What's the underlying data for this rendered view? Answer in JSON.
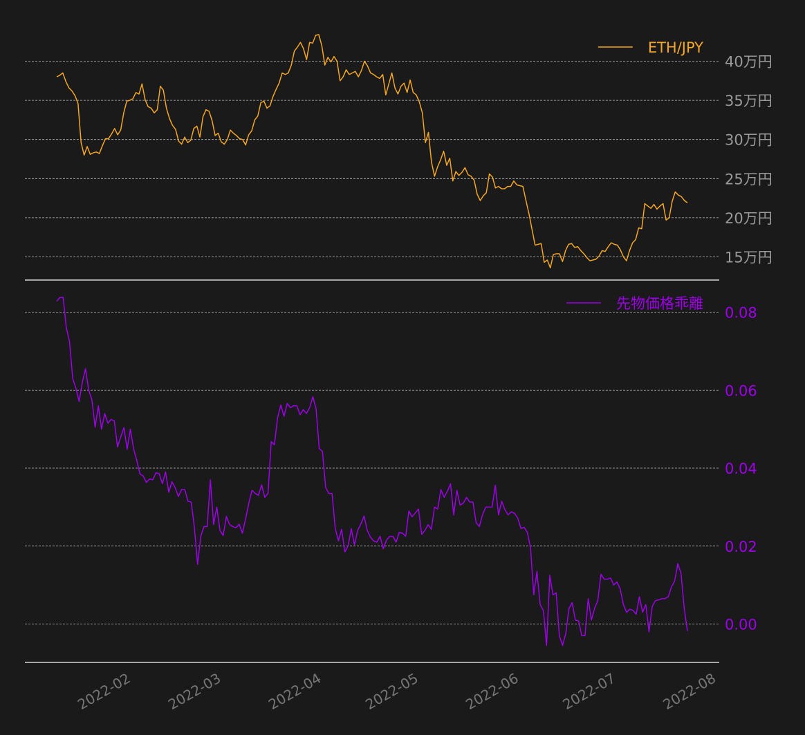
{
  "chart_data": [
    {
      "type": "line",
      "series": [
        {
          "name": "ETH/JPY",
          "color": "#f5a623",
          "values": [
            380000,
            382000,
            385000,
            374000,
            366000,
            362000,
            356000,
            346000,
            296000,
            280000,
            291000,
            281000,
            283000,
            284000,
            282000,
            292000,
            301000,
            301000,
            307000,
            314000,
            306000,
            312000,
            334000,
            349000,
            350000,
            352000,
            360000,
            358000,
            371000,
            351000,
            342000,
            340000,
            334000,
            338000,
            368000,
            363000,
            340000,
            327000,
            318000,
            313000,
            298000,
            294000,
            303000,
            296000,
            299000,
            314000,
            317000,
            303000,
            329000,
            338000,
            336000,
            324000,
            305000,
            308000,
            297000,
            294000,
            300000,
            312000,
            308000,
            305000,
            301000,
            300000,
            293000,
            306000,
            311000,
            325000,
            330000,
            347000,
            349000,
            340000,
            343000,
            355000,
            364000,
            372000,
            385000,
            383000,
            385000,
            395000,
            413000,
            418000,
            424000,
            416000,
            402000,
            424000,
            423000,
            433000,
            434000,
            420000,
            395000,
            405000,
            399000,
            406000,
            400000,
            375000,
            380000,
            389000,
            383000,
            385000,
            387000,
            380000,
            388000,
            400000,
            394000,
            385000,
            383000,
            380000,
            378000,
            383000,
            357000,
            371000,
            385000,
            366000,
            358000,
            368000,
            372000,
            360000,
            376000,
            360000,
            357000,
            348000,
            334000,
            296000,
            309000,
            271000,
            253000,
            265000,
            274000,
            285000,
            267000,
            276000,
            247000,
            259000,
            254000,
            258000,
            264000,
            255000,
            253000,
            248000,
            230000,
            222000,
            228000,
            232000,
            256000,
            252000,
            238000,
            240000,
            237000,
            237000,
            240000,
            240000,
            247000,
            242000,
            241000,
            240000,
            222000,
            205000,
            185000,
            165000,
            166000,
            167000,
            143000,
            146000,
            136000,
            153000,
            154000,
            154000,
            144000,
            158000,
            166000,
            167000,
            162000,
            163000,
            158000,
            154000,
            149000,
            145000,
            146000,
            147000,
            151000,
            158000,
            157000,
            163000,
            168000,
            166000,
            165000,
            159000,
            150000,
            145000,
            158000,
            168000,
            172000,
            187000,
            186000,
            218000,
            215000,
            212000,
            217000,
            211000,
            215000,
            218000,
            197000,
            200000,
            221000,
            233000,
            229000,
            227000,
            222000,
            219000
          ]
        }
      ],
      "ylim": [
        120000,
        450000
      ],
      "yticks": [
        150000,
        200000,
        250000,
        300000,
        350000,
        400000
      ],
      "ytick_labels": [
        "15万円",
        "20万円",
        "25万円",
        "30万円",
        "35万円",
        "40万円"
      ],
      "legend": "top-right",
      "grid": true
    },
    {
      "type": "line",
      "series": [
        {
          "name": "先物価格乖離",
          "color": "#9f00ea",
          "values": [
            0.0828,
            0.0838,
            0.0838,
            0.076,
            0.0725,
            0.063,
            0.0605,
            0.0571,
            0.062,
            0.0655,
            0.06,
            0.0575,
            0.0505,
            0.056,
            0.05,
            0.054,
            0.0515,
            0.0525,
            0.0521,
            0.0454,
            0.048,
            0.0504,
            0.0448,
            0.05,
            0.045,
            0.042,
            0.0385,
            0.038,
            0.0363,
            0.0372,
            0.037,
            0.0388,
            0.0386,
            0.036,
            0.039,
            0.0338,
            0.0365,
            0.035,
            0.0327,
            0.0345,
            0.0345,
            0.0315,
            0.0313,
            0.0248,
            0.0153,
            0.0225,
            0.025,
            0.025,
            0.037,
            0.0255,
            0.03,
            0.024,
            0.0227,
            0.0276,
            0.0255,
            0.025,
            0.0247,
            0.0256,
            0.0233,
            0.027,
            0.031,
            0.0343,
            0.0335,
            0.033,
            0.0357,
            0.0325,
            0.0335,
            0.0468,
            0.046,
            0.053,
            0.0562,
            0.0533,
            0.0566,
            0.0555,
            0.056,
            0.056,
            0.0537,
            0.055,
            0.054,
            0.0555,
            0.0583,
            0.0553,
            0.045,
            0.0443,
            0.035,
            0.0335,
            0.0335,
            0.0245,
            0.0213,
            0.0243,
            0.0185,
            0.02,
            0.0245,
            0.0203,
            0.024,
            0.0257,
            0.0277,
            0.024,
            0.0223,
            0.0213,
            0.021,
            0.0225,
            0.0193,
            0.0215,
            0.0225,
            0.0225,
            0.021,
            0.0235,
            0.0233,
            0.0225,
            0.029,
            0.0275,
            0.0285,
            0.0295,
            0.023,
            0.024,
            0.0255,
            0.0243,
            0.03,
            0.0295,
            0.0345,
            0.0325,
            0.034,
            0.036,
            0.028,
            0.0343,
            0.0305,
            0.031,
            0.0325,
            0.0313,
            0.0313,
            0.026,
            0.025,
            0.028,
            0.03,
            0.03,
            0.03,
            0.0356,
            0.028,
            0.0315,
            0.0293,
            0.028,
            0.0288,
            0.0284,
            0.0272,
            0.0245,
            0.0248,
            0.0235,
            0.0195,
            0.0075,
            0.0135,
            0.005,
            0.0035,
            -0.0055,
            0.0125,
            0.0075,
            0.008,
            -0.003,
            -0.0055,
            -0.0025,
            0.004,
            0.0055,
            0.001,
            0.0008,
            -0.003,
            -0.003,
            0.0065,
            0.001,
            0.004,
            0.006,
            0.0128,
            0.0115,
            0.0115,
            0.0118,
            0.01,
            0.0108,
            0.009,
            0.005,
            0.003,
            0.0038,
            0.0035,
            0.0025,
            0.007,
            0.003,
            0.005,
            -0.002,
            0.0045,
            0.006,
            0.0062,
            0.0065,
            0.0065,
            0.007,
            0.0095,
            0.011,
            0.0155,
            0.013,
            0.004,
            -0.0018
          ]
        }
      ],
      "ylim": [
        -0.01,
        0.085
      ],
      "yticks": [
        0.0,
        0.02,
        0.04,
        0.06,
        0.08
      ],
      "ytick_labels": [
        "0.00",
        "0.02",
        "0.04",
        "0.06",
        "0.08"
      ],
      "legend": "top-right",
      "grid": true
    }
  ],
  "x_axis": {
    "start": "2022-01-10",
    "end": "2022-07-24",
    "tick_labels": [
      "2022-02",
      "2022-03",
      "2022-04",
      "2022-05",
      "2022-06",
      "2022-07",
      "2022-08"
    ],
    "tick_dates": [
      "2022-02-01",
      "2022-03-01",
      "2022-04-01",
      "2022-05-01",
      "2022-06-01",
      "2022-07-01",
      "2022-08-01"
    ]
  },
  "colors": {
    "background": "#1a1a1a",
    "grid": "#bdbdbd",
    "axis": "#d8d8d8",
    "eth_tick": "#9a9a9a",
    "spread_tick": "#a000ea",
    "x_tick": "#777777"
  }
}
